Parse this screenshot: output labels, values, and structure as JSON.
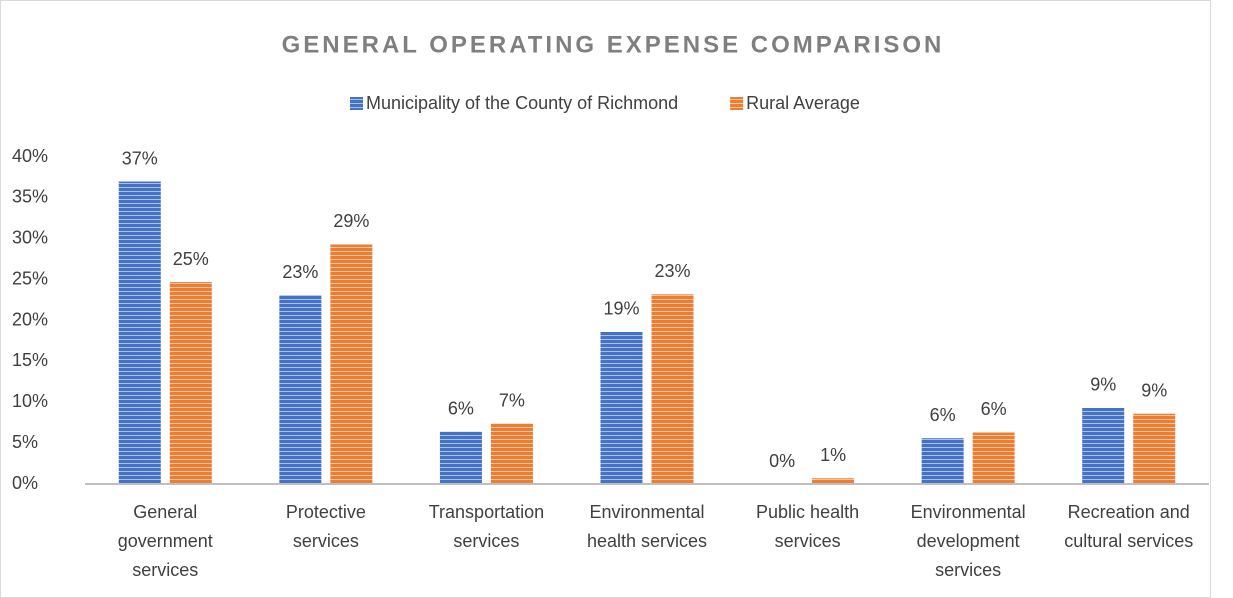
{
  "chart_data": {
    "type": "bar",
    "title": "GENERAL OPERATING EXPENSE COMPARISON",
    "categories": [
      "General government services",
      "Protective services",
      "Transportation services",
      "Environmental health services",
      "Public health services",
      "Environmental development services",
      "Recreation and cultural services"
    ],
    "series": [
      {
        "name": "Municipality of the County of Richmond",
        "color": "#4472c4",
        "values": [
          37.0,
          23.1,
          6.4,
          18.6,
          0,
          5.6,
          9.3
        ],
        "value_labels": [
          "37%",
          "23%",
          "6%",
          "19%",
          "0%",
          "6%",
          "9%"
        ]
      },
      {
        "name": "Rural Average",
        "color": "#ed7d31",
        "values": [
          24.7,
          29.3,
          7.4,
          23.2,
          0.7,
          6.3,
          8.6
        ],
        "value_labels": [
          "25%",
          "29%",
          "7%",
          "23%",
          "1%",
          "6%",
          "9%"
        ]
      }
    ],
    "ylim": [
      0,
      40
    ],
    "yticks": [
      {
        "value": 0,
        "label": "0%"
      },
      {
        "value": 5,
        "label": "5%"
      },
      {
        "value": 10,
        "label": "10%"
      },
      {
        "value": 15,
        "label": "15%"
      },
      {
        "value": 20,
        "label": "20%"
      },
      {
        "value": 25,
        "label": "25%"
      },
      {
        "value": 30,
        "label": "30%"
      },
      {
        "value": 35,
        "label": "35%"
      },
      {
        "value": 40,
        "label": "40%"
      }
    ],
    "grid": false,
    "legend": "top"
  }
}
